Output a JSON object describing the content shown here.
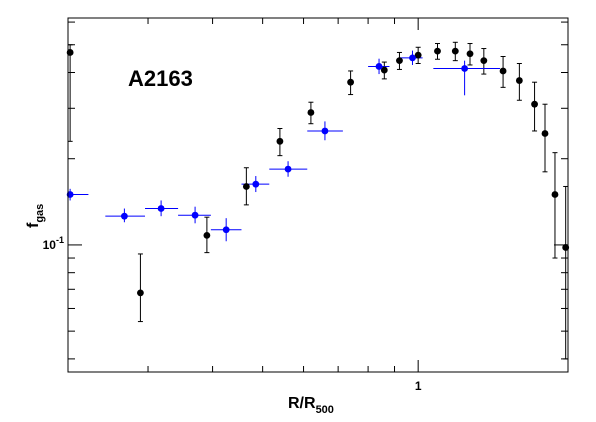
{
  "chart_data": {
    "type": "scatter",
    "title": "A2163",
    "xlabel": "R/R",
    "xlabel_sub": "500",
    "ylabel": "f",
    "ylabel_sub": "gas",
    "x_scale": "log",
    "y_scale": "log",
    "xlim": [
      0.21,
      1.95
    ],
    "ylim": [
      0.036,
      0.62
    ],
    "x_tick_labels": [
      {
        "value": 1,
        "label": "1"
      }
    ],
    "y_tick_labels": [
      {
        "value": 0.1,
        "label": "10",
        "exponent": "-1"
      }
    ],
    "grid": false,
    "legend": "none",
    "series": [
      {
        "color": "#000000",
        "points": [
          {
            "x": 0.212,
            "y": 0.47,
            "y_lo": 0.23,
            "y_hi": 0.5
          },
          {
            "x": 0.29,
            "y": 0.068,
            "y_lo": 0.054,
            "y_hi": 0.093
          },
          {
            "x": 0.39,
            "y": 0.108,
            "y_lo": 0.094,
            "y_hi": 0.125
          },
          {
            "x": 0.465,
            "y": 0.16,
            "y_lo": 0.138,
            "y_hi": 0.186
          },
          {
            "x": 0.54,
            "y": 0.23,
            "y_lo": 0.205,
            "y_hi": 0.255
          },
          {
            "x": 0.62,
            "y": 0.29,
            "y_lo": 0.265,
            "y_hi": 0.315
          },
          {
            "x": 0.74,
            "y": 0.37,
            "y_lo": 0.335,
            "y_hi": 0.405
          },
          {
            "x": 0.86,
            "y": 0.408,
            "y_lo": 0.38,
            "y_hi": 0.435
          },
          {
            "x": 0.92,
            "y": 0.44,
            "y_lo": 0.41,
            "y_hi": 0.47
          },
          {
            "x": 1.0,
            "y": 0.46,
            "y_lo": 0.43,
            "y_hi": 0.49
          },
          {
            "x": 1.09,
            "y": 0.475,
            "y_lo": 0.445,
            "y_hi": 0.505
          },
          {
            "x": 1.18,
            "y": 0.475,
            "y_lo": 0.44,
            "y_hi": 0.51
          },
          {
            "x": 1.26,
            "y": 0.465,
            "y_lo": 0.425,
            "y_hi": 0.505
          },
          {
            "x": 1.34,
            "y": 0.44,
            "y_lo": 0.395,
            "y_hi": 0.485
          },
          {
            "x": 1.46,
            "y": 0.405,
            "y_lo": 0.355,
            "y_hi": 0.455
          },
          {
            "x": 1.57,
            "y": 0.375,
            "y_lo": 0.32,
            "y_hi": 0.43
          },
          {
            "x": 1.68,
            "y": 0.31,
            "y_lo": 0.25,
            "y_hi": 0.37
          },
          {
            "x": 1.76,
            "y": 0.245,
            "y_lo": 0.18,
            "y_hi": 0.31
          },
          {
            "x": 1.84,
            "y": 0.15,
            "y_lo": 0.09,
            "y_hi": 0.21
          },
          {
            "x": 1.93,
            "y": 0.098,
            "y_lo": 0.04,
            "y_hi": 0.16
          }
        ]
      },
      {
        "color": "#0000ff",
        "points": [
          {
            "x": 0.212,
            "y": 0.15,
            "y_lo": 0.143,
            "y_hi": 0.157,
            "x_lo": 0.21,
            "x_hi": 0.23
          },
          {
            "x": 0.27,
            "y": 0.126,
            "y_lo": 0.12,
            "y_hi": 0.134,
            "x_lo": 0.248,
            "x_hi": 0.296
          },
          {
            "x": 0.318,
            "y": 0.134,
            "y_lo": 0.126,
            "y_hi": 0.143,
            "x_lo": 0.296,
            "x_hi": 0.343
          },
          {
            "x": 0.37,
            "y": 0.127,
            "y_lo": 0.119,
            "y_hi": 0.136,
            "x_lo": 0.343,
            "x_hi": 0.397
          },
          {
            "x": 0.425,
            "y": 0.113,
            "y_lo": 0.103,
            "y_hi": 0.124,
            "x_lo": 0.397,
            "x_hi": 0.455
          },
          {
            "x": 0.485,
            "y": 0.163,
            "y_lo": 0.153,
            "y_hi": 0.174,
            "x_lo": 0.455,
            "x_hi": 0.515
          },
          {
            "x": 0.56,
            "y": 0.184,
            "y_lo": 0.173,
            "y_hi": 0.196,
            "x_lo": 0.515,
            "x_hi": 0.61
          },
          {
            "x": 0.66,
            "y": 0.25,
            "y_lo": 0.232,
            "y_hi": 0.27,
            "x_lo": 0.61,
            "x_hi": 0.715
          },
          {
            "x": 0.84,
            "y": 0.42,
            "y_lo": 0.395,
            "y_hi": 0.447,
            "x_lo": 0.8,
            "x_hi": 0.88
          },
          {
            "x": 0.975,
            "y": 0.45,
            "y_lo": 0.425,
            "y_hi": 0.477,
            "x_lo": 0.92,
            "x_hi": 1.02
          },
          {
            "x": 1.23,
            "y": 0.413,
            "y_lo": 0.333,
            "y_hi": 0.44,
            "x_lo": 1.07,
            "x_hi": 1.44
          }
        ]
      }
    ]
  }
}
